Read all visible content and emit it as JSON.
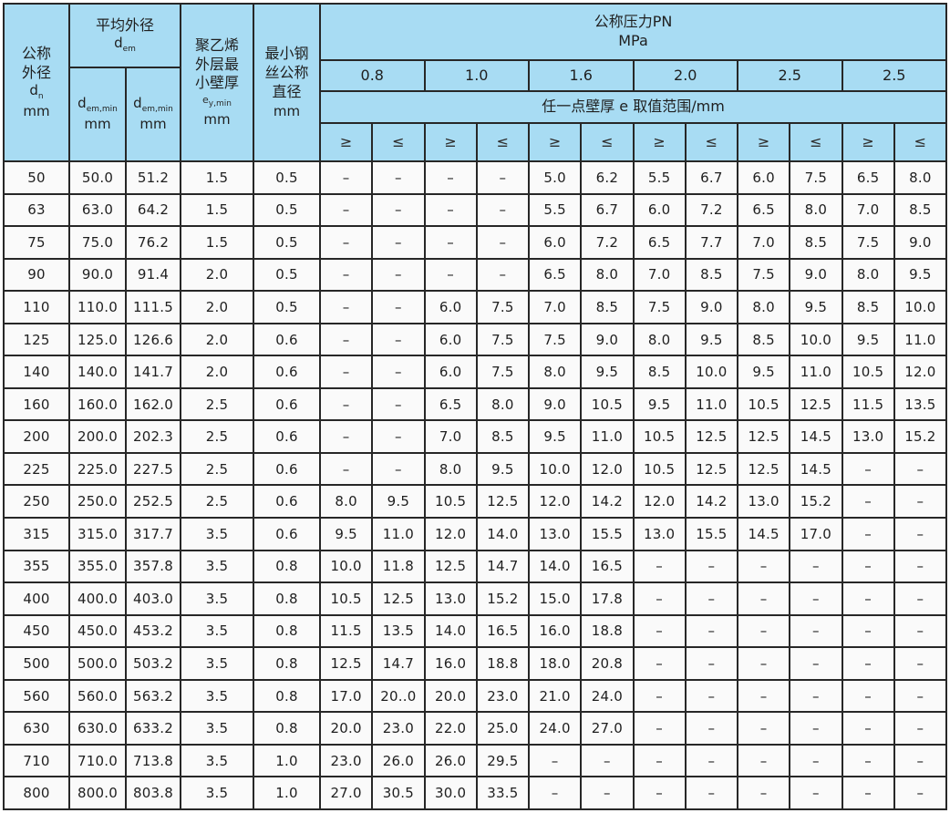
{
  "table": {
    "colors": {
      "header_bg": "#a8dcf3",
      "border": "#272727",
      "cell_bg": "#fafafa"
    },
    "header": {
      "nominal_od": {
        "line1": "公称",
        "line2": "外径",
        "sym_base": "d",
        "sym_sub": "n",
        "unit": "mm"
      },
      "mean_od": {
        "title": "平均外径",
        "sym_base": "d",
        "sym_sub": "em"
      },
      "dem_sub_1": {
        "sym_base": "d",
        "sym_sub": "em,min",
        "unit": "mm"
      },
      "dem_sub_2": {
        "sym_base": "d",
        "sym_sub": "em,min",
        "unit": "mm"
      },
      "pe_layer": {
        "line1": "聚乙烯",
        "line2": "外层最",
        "line3": "小壁厚",
        "sym_base": "e",
        "sym_sub": "y,min",
        "unit": "mm"
      },
      "steel_wire": {
        "line1": "最小钢",
        "line2": "丝公称",
        "line3": "直径",
        "unit": "mm"
      },
      "pn": {
        "title": "公称压力PN",
        "unit": "MPa",
        "pressures": [
          "0.8",
          "1.0",
          "1.6",
          "2.0",
          "2.5",
          "2.5"
        ],
        "range_label": "任一点壁厚 e 取值范围/mm",
        "ge": "≥",
        "le": "≤"
      }
    },
    "rows": [
      {
        "dn": "50",
        "dem_min": "50.0",
        "dem_max": "51.2",
        "pe_min_wall": "1.5",
        "wire_dia": "0.5",
        "values": [
          "–",
          "–",
          "–",
          "–",
          "5.0",
          "6.2",
          "5.5",
          "6.7",
          "6.0",
          "7.5",
          "6.5",
          "8.0"
        ]
      },
      {
        "dn": "63",
        "dem_min": "63.0",
        "dem_max": "64.2",
        "pe_min_wall": "1.5",
        "wire_dia": "0.5",
        "values": [
          "–",
          "–",
          "–",
          "–",
          "5.5",
          "6.7",
          "6.0",
          "7.2",
          "6.5",
          "8.0",
          "7.0",
          "8.5"
        ]
      },
      {
        "dn": "75",
        "dem_min": "75.0",
        "dem_max": "76.2",
        "pe_min_wall": "1.5",
        "wire_dia": "0.5",
        "values": [
          "–",
          "–",
          "–",
          "–",
          "6.0",
          "7.2",
          "6.5",
          "7.7",
          "7.0",
          "8.5",
          "7.5",
          "9.0"
        ]
      },
      {
        "dn": "90",
        "dem_min": "90.0",
        "dem_max": "91.4",
        "pe_min_wall": "2.0",
        "wire_dia": "0.5",
        "values": [
          "–",
          "–",
          "–",
          "–",
          "6.5",
          "8.0",
          "7.0",
          "8.5",
          "7.5",
          "9.0",
          "8.0",
          "9.5"
        ]
      },
      {
        "dn": "110",
        "dem_min": "110.0",
        "dem_max": "111.5",
        "pe_min_wall": "2.0",
        "wire_dia": "0.5",
        "values": [
          "–",
          "–",
          "6.0",
          "7.5",
          "7.0",
          "8.5",
          "7.5",
          "9.0",
          "8.0",
          "9.5",
          "8.5",
          "10.0"
        ]
      },
      {
        "dn": "125",
        "dem_min": "125.0",
        "dem_max": "126.6",
        "pe_min_wall": "2.0",
        "wire_dia": "0.6",
        "values": [
          "–",
          "–",
          "6.0",
          "7.5",
          "7.5",
          "9.0",
          "8.0",
          "9.5",
          "8.5",
          "10.0",
          "9.5",
          "11.0"
        ]
      },
      {
        "dn": "140",
        "dem_min": "140.0",
        "dem_max": "141.7",
        "pe_min_wall": "2.0",
        "wire_dia": "0.6",
        "values": [
          "–",
          "–",
          "6.0",
          "7.5",
          "8.0",
          "9.5",
          "8.5",
          "10.0",
          "9.5",
          "11.0",
          "10.5",
          "12.0"
        ]
      },
      {
        "dn": "160",
        "dem_min": "160.0",
        "dem_max": "162.0",
        "pe_min_wall": "2.5",
        "wire_dia": "0.6",
        "values": [
          "–",
          "–",
          "6.5",
          "8.0",
          "9.0",
          "10.5",
          "9.5",
          "11.0",
          "10.5",
          "12.5",
          "11.5",
          "13.5"
        ]
      },
      {
        "dn": "200",
        "dem_min": "200.0",
        "dem_max": "202.3",
        "pe_min_wall": "2.5",
        "wire_dia": "0.6",
        "values": [
          "–",
          "–",
          "7.0",
          "8.5",
          "9.5",
          "11.0",
          "10.5",
          "12.5",
          "12.5",
          "14.5",
          "13.0",
          "15.2"
        ]
      },
      {
        "dn": "225",
        "dem_min": "225.0",
        "dem_max": "227.5",
        "pe_min_wall": "2.5",
        "wire_dia": "0.6",
        "values": [
          "–",
          "–",
          "8.0",
          "9.5",
          "10.0",
          "12.0",
          "10.5",
          "12.5",
          "12.5",
          "14.5",
          "–",
          "–"
        ]
      },
      {
        "dn": "250",
        "dem_min": "250.0",
        "dem_max": "252.5",
        "pe_min_wall": "2.5",
        "wire_dia": "0.6",
        "values": [
          "8.0",
          "9.5",
          "10.5",
          "12.5",
          "12.0",
          "14.2",
          "12.0",
          "14.2",
          "13.0",
          "15.2",
          "–",
          "–"
        ]
      },
      {
        "dn": "315",
        "dem_min": "315.0",
        "dem_max": "317.7",
        "pe_min_wall": "3.5",
        "wire_dia": "0.6",
        "values": [
          "9.5",
          "11.0",
          "12.0",
          "14.0",
          "13.0",
          "15.5",
          "13.0",
          "15.5",
          "14.5",
          "17.0",
          "–",
          "–"
        ]
      },
      {
        "dn": "355",
        "dem_min": "355.0",
        "dem_max": "357.8",
        "pe_min_wall": "3.5",
        "wire_dia": "0.8",
        "values": [
          "10.0",
          "11.8",
          "12.5",
          "14.7",
          "14.0",
          "16.5",
          "–",
          "–",
          "–",
          "–",
          "–",
          "–"
        ]
      },
      {
        "dn": "400",
        "dem_min": "400.0",
        "dem_max": "403.0",
        "pe_min_wall": "3.5",
        "wire_dia": "0.8",
        "values": [
          "10.5",
          "12.5",
          "13.0",
          "15.2",
          "15.0",
          "17.8",
          "–",
          "–",
          "–",
          "–",
          "–",
          "–"
        ]
      },
      {
        "dn": "450",
        "dem_min": "450.0",
        "dem_max": "453.2",
        "pe_min_wall": "3.5",
        "wire_dia": "0.8",
        "values": [
          "11.5",
          "13.5",
          "14.0",
          "16.5",
          "16.0",
          "18.8",
          "–",
          "–",
          "–",
          "–",
          "–",
          "–"
        ]
      },
      {
        "dn": "500",
        "dem_min": "500.0",
        "dem_max": "503.2",
        "pe_min_wall": "3.5",
        "wire_dia": "0.8",
        "values": [
          "12.5",
          "14.7",
          "16.0",
          "18.8",
          "18.0",
          "20.8",
          "–",
          "–",
          "–",
          "–",
          "–",
          "–"
        ]
      },
      {
        "dn": "560",
        "dem_min": "560.0",
        "dem_max": "563.2",
        "pe_min_wall": "3.5",
        "wire_dia": "0.8",
        "values": [
          "17.0",
          "20..0",
          "20.0",
          "23.0",
          "21.0",
          "24.0",
          "–",
          "–",
          "–",
          "–",
          "–",
          "–"
        ]
      },
      {
        "dn": "630",
        "dem_min": "630.0",
        "dem_max": "633.2",
        "pe_min_wall": "3.5",
        "wire_dia": "0.8",
        "values": [
          "20.0",
          "23.0",
          "22.0",
          "25.0",
          "24.0",
          "27.0",
          "–",
          "–",
          "–",
          "–",
          "–",
          "–"
        ]
      },
      {
        "dn": "710",
        "dem_min": "710.0",
        "dem_max": "713.8",
        "pe_min_wall": "3.5",
        "wire_dia": "1.0",
        "values": [
          "23.0",
          "26.0",
          "26.0",
          "29.5",
          "–",
          "–",
          "–",
          "–",
          "–",
          "–",
          "–",
          "–"
        ]
      },
      {
        "dn": "800",
        "dem_min": "800.0",
        "dem_max": "803.8",
        "pe_min_wall": "3.5",
        "wire_dia": "1.0",
        "values": [
          "27.0",
          "30.5",
          "30.0",
          "33.5",
          "–",
          "–",
          "–",
          "–",
          "–",
          "–",
          "–",
          "–"
        ]
      }
    ]
  }
}
